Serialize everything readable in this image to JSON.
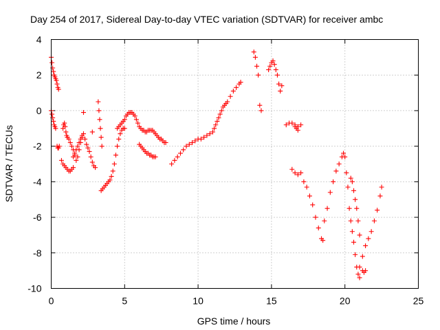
{
  "chart_data": {
    "type": "scatter",
    "title": "Day 254 of 2017, Sidereal Day-to-day VTEC variation (SDTVAR) for receiver ambc",
    "xlabel": "GPS time / hours",
    "ylabel": "SDTVAR / TECUs",
    "xlim": [
      0,
      25
    ],
    "ylim": [
      -10,
      4
    ],
    "x_ticks": [
      0,
      5,
      10,
      15,
      20,
      25
    ],
    "y_ticks": [
      -10,
      -8,
      -6,
      -4,
      -2,
      0,
      2,
      4
    ],
    "grid": true,
    "marker": "+",
    "color": "#ff0000",
    "series": [
      {
        "name": "seg1",
        "x": [
          0.0,
          0.05,
          0.1,
          0.15,
          0.2,
          0.25,
          0.3,
          0.35,
          0.4,
          0.45,
          0.5
        ],
        "y": [
          3.0,
          2.7,
          2.4,
          2.2,
          2.0,
          1.9,
          1.8,
          1.7,
          1.5,
          1.3,
          1.2
        ]
      },
      {
        "name": "seg2",
        "x": [
          0.0,
          0.05,
          0.1,
          0.15,
          0.2,
          0.25,
          0.3
        ],
        "y": [
          0.0,
          -0.2,
          -0.4,
          -0.6,
          -0.8,
          -0.9,
          -1.0
        ]
      },
      {
        "name": "seg3",
        "x": [
          0.4,
          0.45,
          0.5,
          0.55
        ],
        "y": [
          -2.0,
          -2.1,
          -2.1,
          -2.0
        ]
      },
      {
        "name": "seg4",
        "x": [
          0.7,
          0.8,
          0.9,
          1.0,
          1.1,
          1.2,
          1.3,
          1.4,
          1.5
        ],
        "y": [
          -2.8,
          -3.0,
          -3.1,
          -3.2,
          -3.3,
          -3.4,
          -3.4,
          -3.3,
          -3.2
        ]
      },
      {
        "name": "seg5",
        "x": [
          0.8,
          0.85,
          0.9,
          0.95,
          1.0,
          1.05,
          1.1,
          1.2,
          1.3,
          1.4,
          1.5,
          1.6,
          1.7,
          1.8,
          1.9,
          2.0,
          2.1,
          2.2,
          2.3,
          2.4,
          2.5,
          2.6,
          2.7,
          2.8,
          2.9,
          3.0
        ],
        "y": [
          -1.0,
          -0.8,
          -0.7,
          -0.9,
          -1.2,
          -1.4,
          -1.5,
          -1.6,
          -1.8,
          -2.0,
          -2.2,
          -2.5,
          -2.8,
          -2.6,
          -2.2,
          -1.8,
          -1.5,
          -1.3,
          -1.6,
          -1.9,
          -2.1,
          -2.3,
          -2.6,
          -2.9,
          -3.1,
          -3.2
        ]
      },
      {
        "name": "seg6",
        "x": [
          1.5,
          1.6,
          1.7,
          1.8,
          1.9,
          2.0,
          2.1
        ],
        "y": [
          -2.6,
          -2.4,
          -2.2,
          -2.0,
          -1.8,
          -1.6,
          -1.4
        ]
      },
      {
        "name": "seg7",
        "x": [
          2.2,
          2.8
        ],
        "y": [
          -0.1,
          -1.2
        ]
      },
      {
        "name": "seg8",
        "x": [
          3.2,
          3.25,
          3.3,
          3.35,
          3.4,
          3.45
        ],
        "y": [
          0.5,
          0.0,
          -0.5,
          -1.0,
          -1.5,
          -2.0
        ]
      },
      {
        "name": "seg9",
        "x": [
          3.4,
          3.5,
          3.6,
          3.7,
          3.8,
          3.9,
          4.0,
          4.1,
          4.2,
          4.3,
          4.4,
          4.5,
          4.6,
          4.7,
          4.8,
          4.9,
          5.0
        ],
        "y": [
          -4.5,
          -4.4,
          -4.3,
          -4.2,
          -4.1,
          -4.0,
          -3.9,
          -3.7,
          -3.4,
          -3.0,
          -2.5,
          -2.0,
          -1.6,
          -1.3,
          -1.1,
          -1.0,
          -1.0
        ]
      },
      {
        "name": "seg10",
        "x": [
          4.5,
          4.6,
          4.7,
          4.8,
          4.9,
          5.0,
          5.1,
          5.2,
          5.3,
          5.4,
          5.5,
          5.6,
          5.7,
          5.8,
          5.9,
          6.0,
          6.1,
          6.2,
          6.3,
          6.4,
          6.5,
          6.6,
          6.7,
          6.8,
          6.9,
          7.0,
          7.1,
          7.2,
          7.3,
          7.4,
          7.5,
          7.6,
          7.7,
          7.8
        ],
        "y": [
          -1.0,
          -0.9,
          -0.8,
          -0.7,
          -0.6,
          -0.5,
          -0.3,
          -0.2,
          -0.1,
          -0.1,
          -0.1,
          -0.2,
          -0.3,
          -0.5,
          -0.7,
          -0.9,
          -1.0,
          -1.1,
          -1.1,
          -1.2,
          -1.2,
          -1.1,
          -1.1,
          -1.1,
          -1.1,
          -1.2,
          -1.3,
          -1.4,
          -1.5,
          -1.6,
          -1.6,
          -1.7,
          -1.8,
          -1.8
        ]
      },
      {
        "name": "seg11",
        "x": [
          6.0,
          6.1,
          6.2,
          6.3,
          6.4,
          6.5,
          6.6,
          6.7,
          6.8,
          6.9,
          7.0,
          7.1
        ],
        "y": [
          -1.9,
          -2.0,
          -2.1,
          -2.2,
          -2.3,
          -2.4,
          -2.4,
          -2.5,
          -2.5,
          -2.6,
          -2.6,
          -2.6
        ]
      },
      {
        "name": "seg12",
        "x": [
          8.2,
          8.4,
          8.6,
          8.8,
          9.0,
          9.2,
          9.4,
          9.6,
          9.8,
          10.0,
          10.2,
          10.4,
          10.6,
          10.8,
          11.0,
          11.1,
          11.2,
          11.3,
          11.4,
          11.5,
          11.6,
          11.7,
          11.8,
          11.9,
          12.0,
          12.2,
          12.4,
          12.6,
          12.8,
          12.9
        ],
        "y": [
          -3.0,
          -2.8,
          -2.6,
          -2.4,
          -2.2,
          -2.0,
          -1.9,
          -1.8,
          -1.7,
          -1.6,
          -1.6,
          -1.5,
          -1.4,
          -1.3,
          -1.2,
          -1.0,
          -0.8,
          -0.6,
          -0.4,
          -0.2,
          0.0,
          0.2,
          0.3,
          0.4,
          0.5,
          0.8,
          1.1,
          1.3,
          1.5,
          1.6
        ]
      },
      {
        "name": "seg13",
        "x": [
          13.8,
          13.9,
          14.0,
          14.1
        ],
        "y": [
          3.3,
          3.0,
          2.5,
          2.0
        ]
      },
      {
        "name": "seg14",
        "x": [
          14.2,
          14.3
        ],
        "y": [
          0.3,
          0.0
        ]
      },
      {
        "name": "seg15",
        "x": [
          14.8,
          14.9,
          15.0,
          15.1,
          15.2,
          15.3,
          15.4,
          15.5,
          15.6,
          15.7
        ],
        "y": [
          2.3,
          2.5,
          2.7,
          2.8,
          2.6,
          2.3,
          2.0,
          1.5,
          1.1,
          1.4
        ]
      },
      {
        "name": "seg16",
        "x": [
          16.0,
          16.2,
          16.4,
          16.6,
          16.8,
          17.0
        ],
        "y": [
          -0.8,
          -0.7,
          -0.7,
          -0.8,
          -0.9,
          -0.8
        ]
      },
      {
        "name": "seg17",
        "x": [
          16.6,
          16.7,
          16.8
        ],
        "y": [
          -0.9,
          -1.0,
          -1.1
        ]
      },
      {
        "name": "seg18",
        "x": [
          16.4,
          16.6,
          16.8,
          17.0,
          17.2,
          17.4,
          17.6,
          17.8,
          18.0,
          18.2,
          18.4,
          18.5
        ],
        "y": [
          -3.3,
          -3.5,
          -3.6,
          -3.5,
          -4.0,
          -4.3,
          -4.8,
          -5.3,
          -6.0,
          -6.6,
          -7.2,
          -7.3
        ]
      },
      {
        "name": "seg19",
        "x": [
          18.6,
          18.8,
          19.0,
          19.2,
          19.4,
          19.6,
          19.8,
          19.9,
          20.0,
          20.1,
          20.2,
          20.3,
          20.4,
          20.5,
          20.6,
          20.7,
          20.8,
          20.9,
          21.0
        ],
        "y": [
          -6.2,
          -5.5,
          -4.6,
          -4.0,
          -3.4,
          -3.0,
          -2.6,
          -2.4,
          -2.6,
          -3.5,
          -4.3,
          -5.5,
          -6.2,
          -6.8,
          -7.4,
          -8.1,
          -8.8,
          -9.2,
          -9.4
        ]
      },
      {
        "name": "seg20",
        "x": [
          20.4,
          20.5,
          20.6,
          20.7,
          20.8,
          20.9,
          21.0
        ],
        "y": [
          -3.8,
          -4.0,
          -4.5,
          -5.0,
          -5.5,
          -6.2,
          -7.0
        ]
      },
      {
        "name": "seg21",
        "x": [
          21.0,
          21.2,
          21.4,
          21.6,
          21.8,
          22.0,
          22.2,
          22.4,
          22.5
        ],
        "y": [
          -8.8,
          -8.2,
          -7.6,
          -7.2,
          -6.8,
          -6.2,
          -5.6,
          -4.8,
          -4.3
        ]
      },
      {
        "name": "seg22",
        "x": [
          21.2,
          21.3,
          21.4
        ],
        "y": [
          -9.0,
          -9.1,
          -9.0
        ]
      }
    ]
  }
}
